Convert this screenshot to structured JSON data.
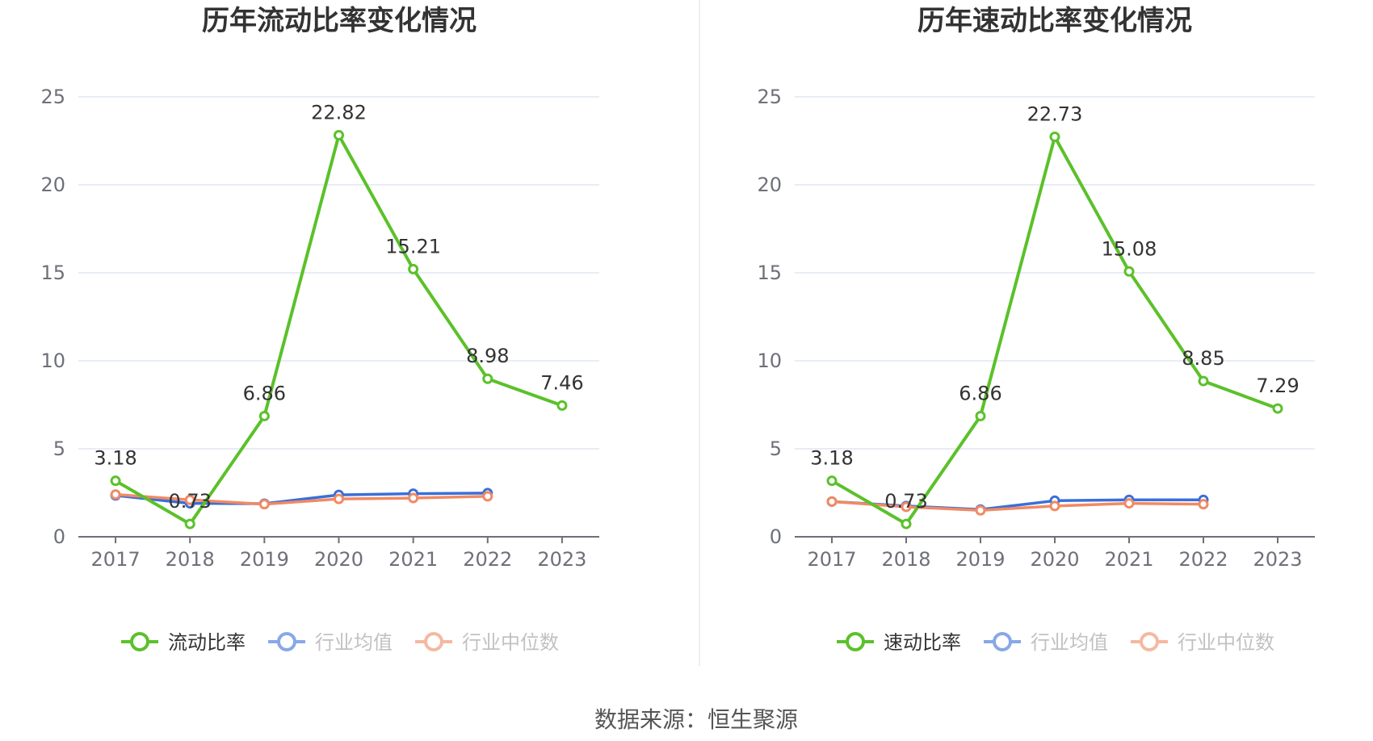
{
  "source": "数据来源：恒生聚源",
  "chart_data": [
    {
      "type": "line",
      "title": "历年流动比率变化情况",
      "categories": [
        "2017",
        "2018",
        "2019",
        "2020",
        "2021",
        "2022",
        "2023"
      ],
      "ylim": [
        0,
        25
      ],
      "yticks": [
        0,
        5,
        10,
        15,
        20,
        25
      ],
      "grid": true,
      "legend_position": "bottom",
      "series": [
        {
          "name": "流动比率",
          "color": "#5bc12a",
          "values": [
            3.18,
            0.73,
            6.86,
            22.82,
            15.21,
            8.98,
            7.46
          ],
          "labels": [
            "3.18",
            "0.73",
            "6.86",
            "22.82",
            "15.21",
            "8.98",
            "7.46"
          ]
        },
        {
          "name": "行业均值",
          "color": "#3a6fd8",
          "values": [
            2.35,
            1.9,
            1.88,
            2.38,
            2.45,
            2.48,
            null
          ]
        },
        {
          "name": "行业中位数",
          "color": "#f08a64",
          "values": [
            2.4,
            2.1,
            1.85,
            2.15,
            2.2,
            2.3,
            null
          ]
        }
      ]
    },
    {
      "type": "line",
      "title": "历年速动比率变化情况",
      "categories": [
        "2017",
        "2018",
        "2019",
        "2020",
        "2021",
        "2022",
        "2023"
      ],
      "ylim": [
        0,
        25
      ],
      "yticks": [
        0,
        5,
        10,
        15,
        20,
        25
      ],
      "grid": true,
      "legend_position": "bottom",
      "series": [
        {
          "name": "速动比率",
          "color": "#5bc12a",
          "values": [
            3.18,
            0.73,
            6.86,
            22.73,
            15.08,
            8.85,
            7.29
          ],
          "labels": [
            "3.18",
            "0.73",
            "6.86",
            "22.73",
            "15.08",
            "8.85",
            "7.29"
          ]
        },
        {
          "name": "行业均值",
          "color": "#3a6fd8",
          "values": [
            2.0,
            1.75,
            1.55,
            2.05,
            2.1,
            2.1,
            null
          ]
        },
        {
          "name": "行业中位数",
          "color": "#f08a64",
          "values": [
            2.0,
            1.7,
            1.5,
            1.75,
            1.9,
            1.85,
            null
          ]
        }
      ]
    }
  ]
}
